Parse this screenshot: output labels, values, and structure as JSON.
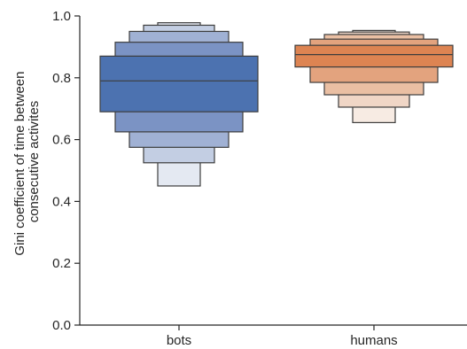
{
  "chart_data": {
    "type": "boxen",
    "title": "",
    "xlabel": "",
    "ylabel_lines": [
      "Gini coefficient of time between",
      "consecutive activites"
    ],
    "ylim": [
      0.0,
      1.0
    ],
    "yticks": [
      "0.0",
      "0.2",
      "0.4",
      "0.6",
      "0.8",
      "1.0"
    ],
    "categories": [
      "bots",
      "humans"
    ],
    "series": [
      {
        "category": "bots",
        "median": 0.79,
        "levels": [
          {
            "low": 0.69,
            "high": 0.87,
            "color": "#4c72b0"
          },
          {
            "low": 0.625,
            "high": 0.915,
            "color": "#7b93c4"
          },
          {
            "low": 0.575,
            "high": 0.95,
            "color": "#a0b1d4"
          },
          {
            "low": 0.525,
            "high": 0.97,
            "color": "#c3cee3"
          },
          {
            "low": 0.45,
            "high": 0.978,
            "color": "#e4e9f2"
          }
        ]
      },
      {
        "category": "humans",
        "median": 0.875,
        "levels": [
          {
            "low": 0.835,
            "high": 0.905,
            "color": "#dd8452"
          },
          {
            "low": 0.785,
            "high": 0.925,
            "color": "#e3a37e"
          },
          {
            "low": 0.745,
            "high": 0.94,
            "color": "#eabfa3"
          },
          {
            "low": 0.705,
            "high": 0.948,
            "color": "#f0d6c6"
          },
          {
            "low": 0.655,
            "high": 0.953,
            "color": "#f7ebe3"
          }
        ]
      }
    ]
  }
}
